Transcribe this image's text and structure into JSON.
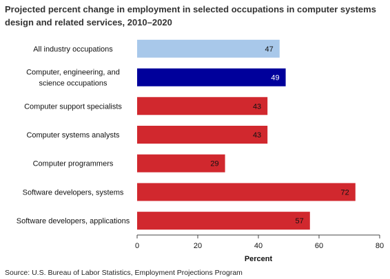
{
  "chart_data": {
    "type": "bar",
    "orientation": "horizontal",
    "title": "Projected percent change in employment in selected occupations in computer systems design and related services, 2010–2020",
    "categories": [
      [
        "All industry occupations"
      ],
      [
        "Computer, engineering, and",
        "science occupations"
      ],
      [
        "Computer support specialists"
      ],
      [
        "Computer systems analysts"
      ],
      [
        "Computer programmers"
      ],
      [
        "Software developers, systems"
      ],
      [
        "Software developers, applications"
      ]
    ],
    "values": [
      47,
      49,
      43,
      43,
      29,
      72,
      57
    ],
    "colors": [
      "#a8c8ea",
      "#00009b",
      "#d1282e",
      "#d1282e",
      "#d1282e",
      "#d1282e",
      "#d1282e"
    ],
    "label_colors": [
      "#111111",
      "#ffffff",
      "#111111",
      "#111111",
      "#111111",
      "#111111",
      "#111111"
    ],
    "xlabel": "Percent",
    "xlim": [
      0,
      80
    ],
    "xticks": [
      0,
      20,
      40,
      60,
      80
    ],
    "grid": false
  },
  "source": "Source: U.S. Bureau of Labor Statistics, Employment Projections Program"
}
